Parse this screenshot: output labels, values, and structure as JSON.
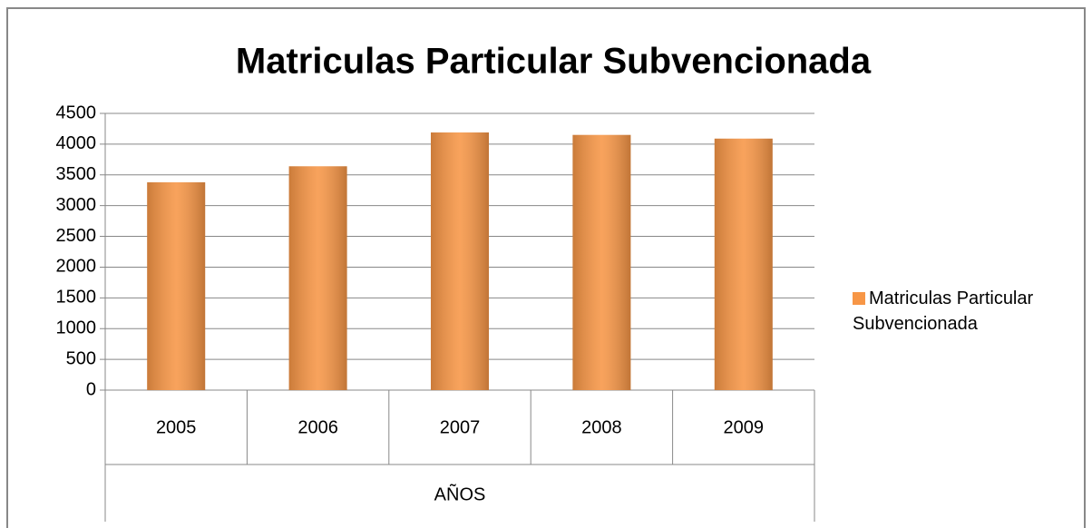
{
  "chart_data": {
    "type": "bar",
    "title": "Matriculas Particular Subvencionada",
    "x_label": "AÑOS",
    "categories": [
      "2005",
      "2006",
      "2007",
      "2008",
      "2009"
    ],
    "series": [
      {
        "name": "Matriculas Particular Subvencionada",
        "color": "#f79646",
        "values": [
          3380,
          3640,
          4190,
          4150,
          4090
        ]
      }
    ],
    "ylim": [
      0,
      4500
    ],
    "yticks": [
      0,
      500,
      1000,
      1500,
      2000,
      2500,
      3000,
      3500,
      4000,
      4500
    ],
    "grid": true,
    "legend": "right"
  }
}
